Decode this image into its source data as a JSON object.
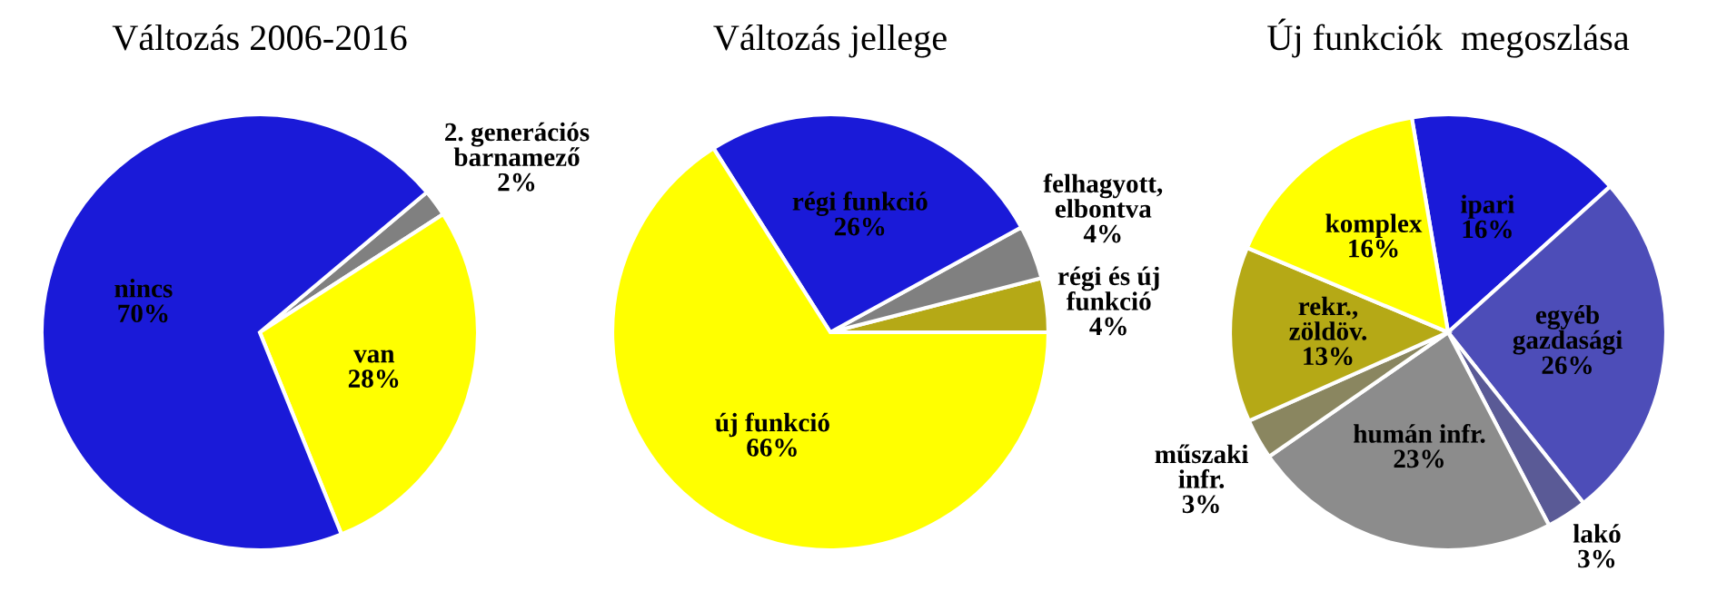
{
  "chart_data": [
    {
      "type": "pie",
      "title": "Változás 2006-2016",
      "categories": [
        "2. generációs\nbarnamező",
        "van",
        "nincs"
      ],
      "values": [
        2,
        28,
        70
      ],
      "value_labels": [
        "2%",
        "28%",
        "70%"
      ],
      "colors": [
        "#808080",
        "#ffff00",
        "#1a1ad8"
      ]
    },
    {
      "type": "pie",
      "title": "Változás jellege",
      "categories": [
        "régi és új\nfunkció",
        "felhagyott,\nelbontva",
        "régi funkció",
        "új funkció"
      ],
      "values": [
        4,
        4,
        26,
        66
      ],
      "value_labels": [
        "4%",
        "4%",
        "26%",
        "66%"
      ],
      "colors": [
        "#b5a916",
        "#808080",
        "#1a1ad8",
        "#ffff00"
      ]
    },
    {
      "type": "pie",
      "title": "Új funkciók  megoszlása",
      "categories": [
        "ipari",
        "egyéb\ngazdasági",
        "lakó",
        "humán infr.",
        "műszaki\ninfr.",
        "rekr.,\nzöldöv.",
        "komplex"
      ],
      "values": [
        16,
        26,
        3,
        23,
        3,
        13,
        16
      ],
      "value_labels": [
        "16%",
        "26%",
        "3%",
        "23%",
        "3%",
        "13%",
        "16%"
      ],
      "colors": [
        "#1a1ad8",
        "#4d4db8",
        "#5a5a96",
        "#8c8c8c",
        "#8a8660",
        "#b5a916",
        "#ffff00"
      ]
    }
  ]
}
